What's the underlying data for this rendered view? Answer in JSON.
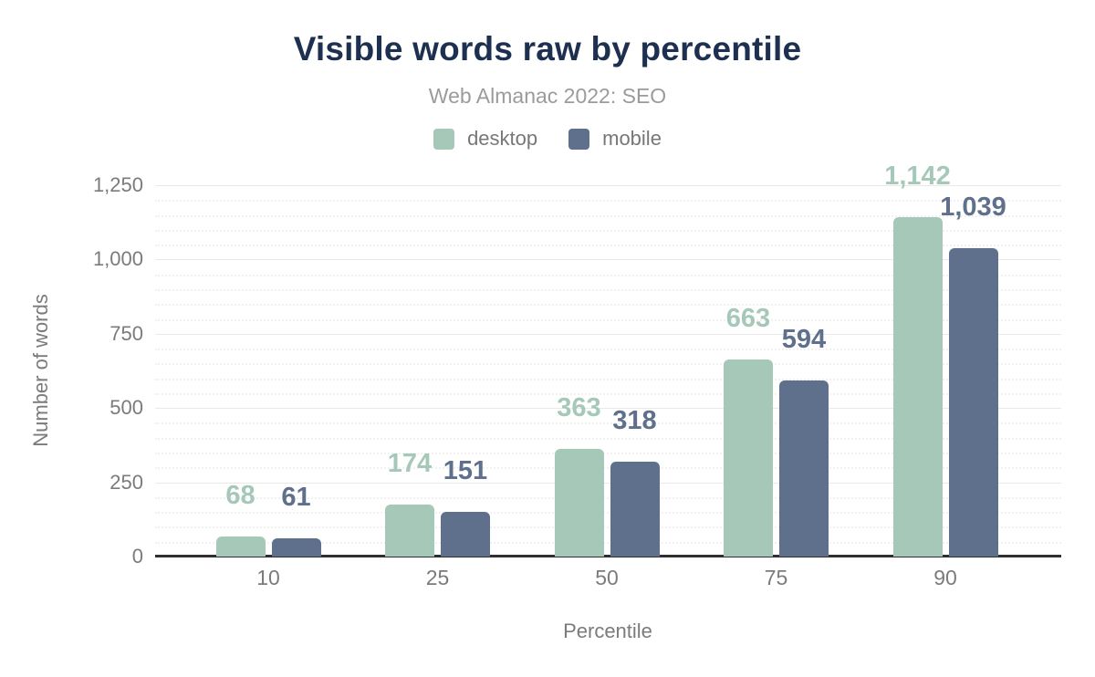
{
  "chart_data": {
    "type": "bar",
    "title": "Visible words raw by percentile",
    "subtitle": "Web Almanac 2022: SEO",
    "xlabel": "Percentile",
    "ylabel": "Number of words",
    "categories": [
      "10",
      "25",
      "50",
      "75",
      "90"
    ],
    "series": [
      {
        "name": "desktop",
        "color": "#a5c8b8",
        "values": [
          68,
          174,
          363,
          663,
          1142
        ]
      },
      {
        "name": "mobile",
        "color": "#5f708c",
        "values": [
          61,
          151,
          318,
          594,
          1039
        ]
      }
    ],
    "ylim": [
      0,
      1250
    ],
    "y_major_ticks": [
      0,
      250,
      500,
      750,
      1000,
      1250
    ],
    "y_tick_labels": [
      "0",
      "250",
      "500",
      "750",
      "1,000",
      "1,250"
    ],
    "y_minor_step": 50,
    "grid": true,
    "legend_position": "top",
    "bar_value_labels_shown": true
  },
  "colors": {
    "title": "#1e3050",
    "subtitle": "#9b9b9b",
    "axis_text": "#7b7b7b",
    "axis_line": "#2f2f2f",
    "grid_major": "#e9e9e9",
    "grid_minor": "#f1f1f1",
    "background": "#ffffff"
  }
}
